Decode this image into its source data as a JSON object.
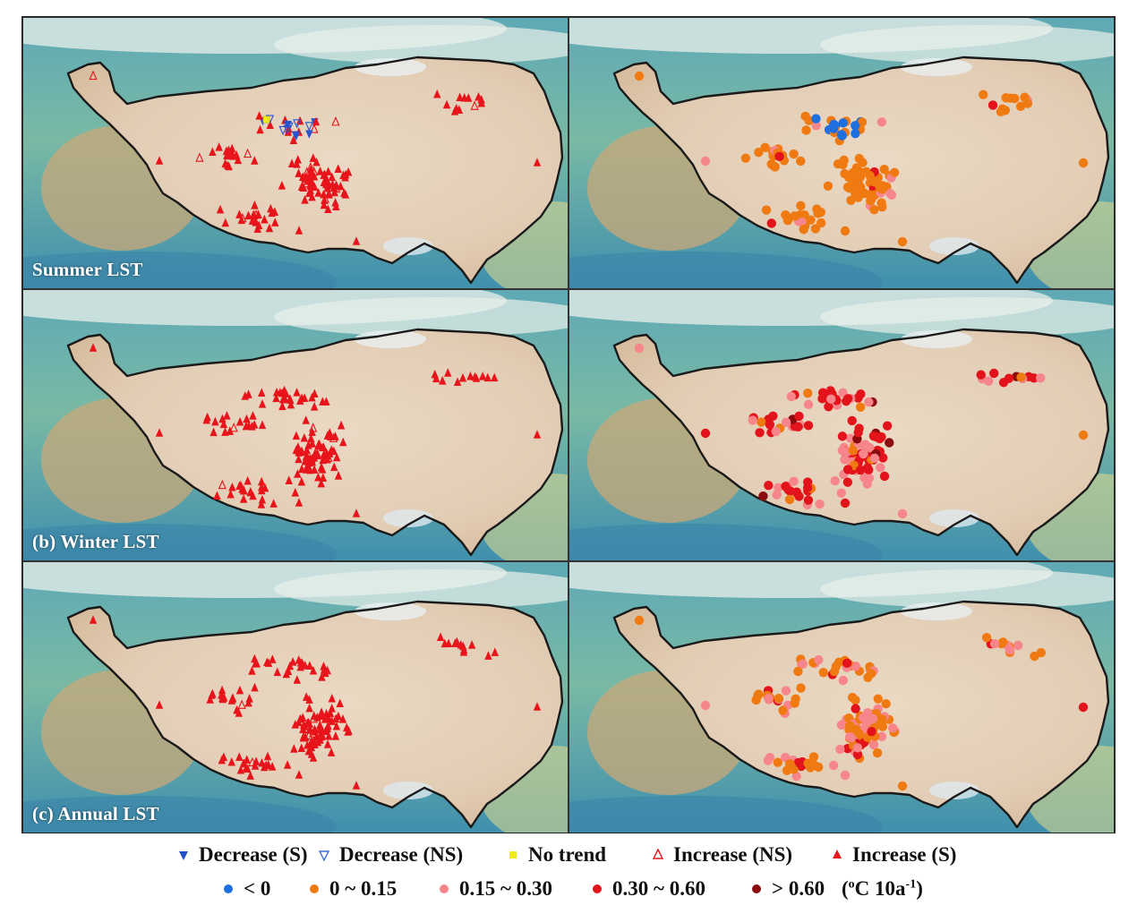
{
  "panels": [
    {
      "id": "summer-trend",
      "label": "Summer LST"
    },
    {
      "id": "summer-rate",
      "label": ""
    },
    {
      "id": "winter-trend",
      "label": "(b) Winter LST"
    },
    {
      "id": "winter-rate",
      "label": ""
    },
    {
      "id": "annual-trend",
      "label": "(c) Annual LST"
    },
    {
      "id": "annual-rate",
      "label": ""
    }
  ],
  "legend_trend": [
    {
      "label": "Decrease (S)",
      "symbol": "triangle-down-filled",
      "color": "#1f4fc9"
    },
    {
      "label": "Decrease (NS)",
      "symbol": "triangle-down-open",
      "color": "#3f6fd8"
    },
    {
      "label": "No trend",
      "symbol": "square-filled",
      "color": "#f2ea1a"
    },
    {
      "label": "Increase (NS)",
      "symbol": "triangle-up-open",
      "color": "#e8141b"
    },
    {
      "label": "Increase (S)",
      "symbol": "triangle-up-filled",
      "color": "#e8141b"
    }
  ],
  "legend_rate": [
    {
      "label": "< 0",
      "color": "#1e6fe0"
    },
    {
      "label": "0 ~ 0.15",
      "color": "#f07a12"
    },
    {
      "label": "0.15 ~ 0.30",
      "color": "#f6868c"
    },
    {
      "label": "0.30 ~ 0.60",
      "color": "#e3131b"
    },
    {
      "label": "> 0.60",
      "color": "#8a0a0e"
    }
  ],
  "legend_unit": {
    "prefix": "(",
    "sup1": "o",
    "mid": "C 10a",
    "sup2": "-1",
    "suffix": ")"
  },
  "colors": {
    "ocean": "#4e9db0",
    "lowland": "#7bb59a",
    "plateau": "#e7d6c1",
    "outline": "#1a1a1a",
    "inc": "#e8141b",
    "dec": "#2a55cf",
    "none": "#f2ea1a"
  }
}
